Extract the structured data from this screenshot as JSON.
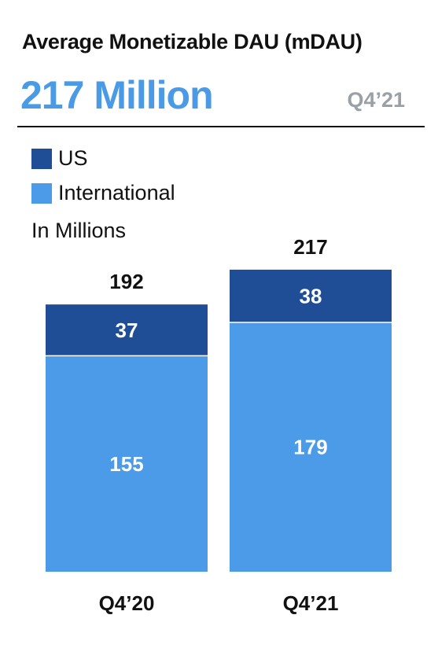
{
  "header": {
    "title": "Average Monetizable DAU (mDAU)",
    "headline": "217 Million",
    "period": "Q4’21"
  },
  "colors": {
    "us": "#1f4e96",
    "international": "#4c9be8",
    "headline": "#4a9ae6"
  },
  "chart_data": {
    "type": "bar",
    "stacked": true,
    "units_label": "In Millions",
    "categories": [
      "Q4’20",
      "Q4’21"
    ],
    "series": [
      {
        "name": "US",
        "values": [
          37,
          38
        ]
      },
      {
        "name": "International",
        "values": [
          155,
          179
        ]
      }
    ],
    "totals": [
      192,
      217
    ],
    "legend": [
      "US",
      "International"
    ],
    "legend_position": "top-left"
  }
}
